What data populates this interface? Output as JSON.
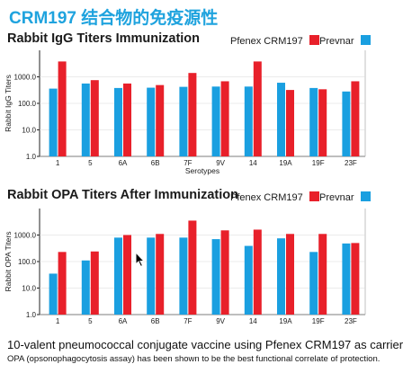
{
  "page_title": "CRM197 结合物的免疫源性",
  "colors": {
    "pfenex": "#e8202a",
    "prevnar": "#1a9fe0",
    "title": "#1fa3de"
  },
  "legend": {
    "pfenex": "Pfenex CRM197",
    "prevnar": "Prevnar"
  },
  "footer": {
    "line1": "10-valent pneumococcal conjugate vaccine using Pfenex CRM197 as carrier",
    "line2": "OPA (opsonophagocytosis assay) has been shown to be the best functional correlate of protection."
  },
  "chart_data": [
    {
      "type": "bar",
      "title": "Rabbit IgG Titers Immunization",
      "xlabel": "Serotypes",
      "ylabel": "Rabbit IgG Titers",
      "yscale": "log",
      "ylim": [
        1,
        10000
      ],
      "yticks": [
        "1.0",
        "10.0",
        "100.0",
        "1000.0"
      ],
      "categories": [
        "1",
        "5",
        "6A",
        "6B",
        "7F",
        "9V",
        "14",
        "19A",
        "19F",
        "23F"
      ],
      "series": [
        {
          "name": "Prevnar",
          "color": "#1a9fe0",
          "values": [
            360,
            560,
            380,
            390,
            420,
            430,
            430,
            600,
            380,
            280
          ]
        },
        {
          "name": "Pfenex CRM197",
          "color": "#e8202a",
          "values": [
            3800,
            750,
            560,
            490,
            1400,
            680,
            3800,
            320,
            340,
            680
          ]
        }
      ]
    },
    {
      "type": "bar",
      "title": "Rabbit OPA Titers After Immunization",
      "xlabel": "",
      "ylabel": "Rabbit OPA Titers",
      "yscale": "log",
      "ylim": [
        1,
        10000
      ],
      "yticks": [
        "1.0",
        "10.0",
        "100.0",
        "1000.0"
      ],
      "categories": [
        "1",
        "5",
        "6A",
        "6B",
        "7F",
        "9V",
        "14",
        "19A",
        "19F",
        "23F"
      ],
      "series": [
        {
          "name": "Prevnar",
          "color": "#1a9fe0",
          "values": [
            35,
            110,
            800,
            800,
            800,
            700,
            390,
            750,
            230,
            480
          ]
        },
        {
          "name": "Pfenex CRM197",
          "color": "#e8202a",
          "values": [
            230,
            240,
            1000,
            1100,
            3500,
            1500,
            1600,
            1100,
            1100,
            500
          ]
        }
      ]
    }
  ]
}
